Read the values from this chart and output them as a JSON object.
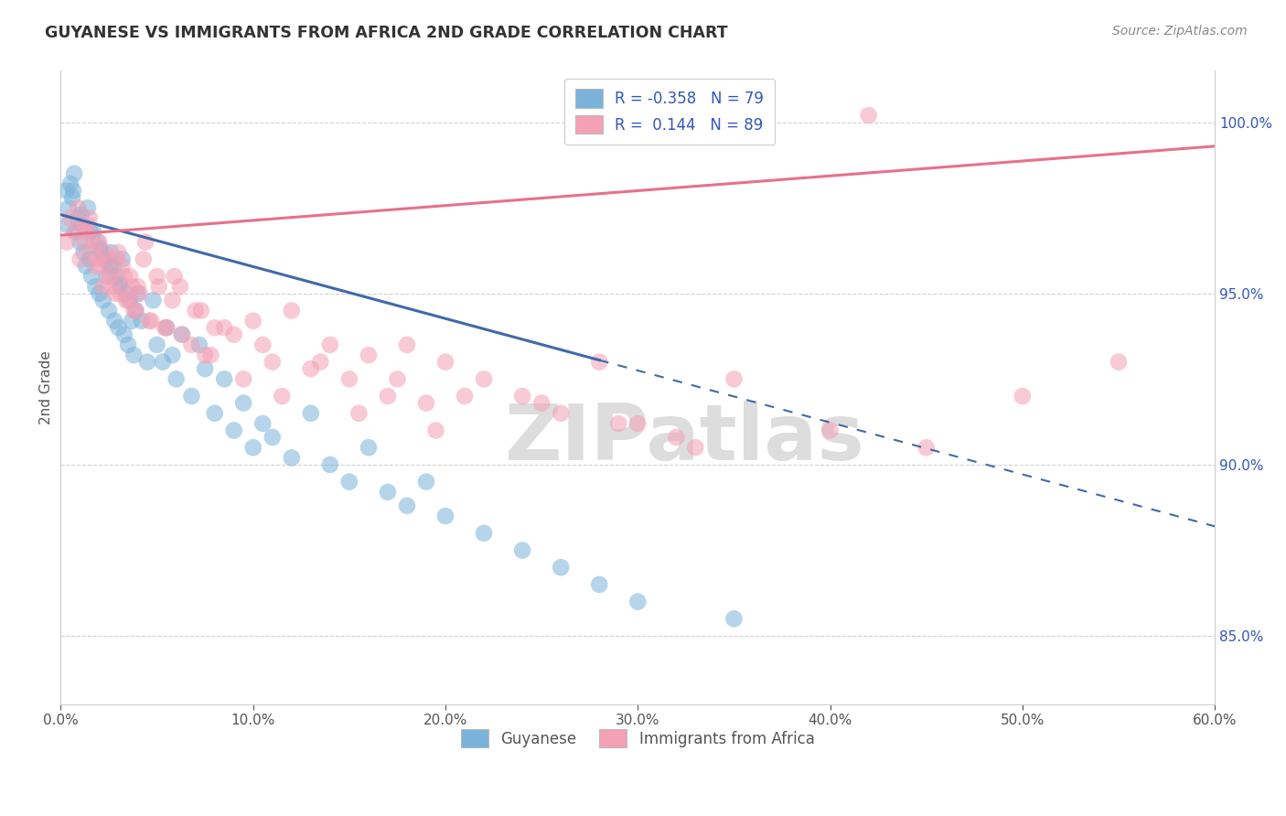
{
  "title": "GUYANESE VS IMMIGRANTS FROM AFRICA 2ND GRADE CORRELATION CHART",
  "source": "Source: ZipAtlas.com",
  "xlabel_blue": "Guyanese",
  "xlabel_pink": "Immigrants from Africa",
  "ylabel": "2nd Grade",
  "xlim": [
    0.0,
    60.0
  ],
  "ylim": [
    83.0,
    101.5
  ],
  "yticks": [
    85.0,
    90.0,
    95.0,
    100.0
  ],
  "xticks": [
    0.0,
    10.0,
    20.0,
    30.0,
    40.0,
    50.0,
    60.0
  ],
  "R_blue": -0.358,
  "N_blue": 79,
  "R_pink": 0.144,
  "N_pink": 89,
  "blue_color": "#7ab3d9",
  "pink_color": "#f4a0b5",
  "blue_line_color": "#4169aa",
  "pink_line_color": "#e8708a",
  "legend_text_color": "#3355bb",
  "background_color": "#ffffff",
  "blue_scatter_x": [
    0.3,
    0.4,
    0.5,
    0.6,
    0.7,
    0.8,
    0.9,
    1.0,
    1.1,
    1.2,
    1.3,
    1.4,
    1.5,
    1.6,
    1.7,
    1.8,
    1.9,
    2.0,
    2.1,
    2.2,
    2.3,
    2.4,
    2.5,
    2.6,
    2.7,
    2.8,
    2.9,
    3.0,
    3.1,
    3.2,
    3.3,
    3.4,
    3.5,
    3.6,
    3.7,
    3.8,
    3.9,
    4.0,
    4.2,
    4.5,
    4.8,
    5.0,
    5.3,
    5.5,
    5.8,
    6.0,
    6.3,
    6.8,
    7.2,
    7.5,
    8.0,
    8.5,
    9.0,
    9.5,
    10.0,
    10.5,
    11.0,
    12.0,
    13.0,
    14.0,
    15.0,
    16.0,
    17.0,
    18.0,
    19.0,
    20.0,
    22.0,
    24.0,
    26.0,
    28.0,
    30.0,
    35.0,
    0.35,
    0.65,
    1.05,
    1.55,
    2.05,
    2.55,
    3.05
  ],
  "blue_scatter_y": [
    98.0,
    97.5,
    98.2,
    97.8,
    98.5,
    96.8,
    97.2,
    96.5,
    97.0,
    96.2,
    95.8,
    97.5,
    96.0,
    95.5,
    96.8,
    95.2,
    96.5,
    95.0,
    96.2,
    94.8,
    96.0,
    95.5,
    94.5,
    96.2,
    95.8,
    94.2,
    95.5,
    94.0,
    95.2,
    96.0,
    93.8,
    95.0,
    93.5,
    94.8,
    94.2,
    93.2,
    94.5,
    95.0,
    94.2,
    93.0,
    94.8,
    93.5,
    93.0,
    94.0,
    93.2,
    92.5,
    93.8,
    92.0,
    93.5,
    92.8,
    91.5,
    92.5,
    91.0,
    91.8,
    90.5,
    91.2,
    90.8,
    90.2,
    91.5,
    90.0,
    89.5,
    90.5,
    89.2,
    88.8,
    89.5,
    88.5,
    88.0,
    87.5,
    87.0,
    86.5,
    86.0,
    85.5,
    97.0,
    98.0,
    97.3,
    96.8,
    96.3,
    95.8,
    95.3
  ],
  "pink_scatter_x": [
    0.3,
    0.5,
    0.7,
    0.9,
    1.0,
    1.2,
    1.4,
    1.6,
    1.8,
    2.0,
    2.2,
    2.4,
    2.6,
    2.8,
    3.0,
    3.2,
    3.4,
    3.6,
    3.8,
    4.0,
    4.3,
    4.6,
    5.0,
    5.4,
    5.8,
    6.2,
    6.8,
    7.3,
    7.8,
    8.5,
    9.0,
    10.0,
    11.0,
    12.0,
    13.0,
    14.0,
    15.0,
    16.0,
    17.0,
    18.0,
    19.0,
    20.0,
    22.0,
    24.0,
    26.0,
    28.0,
    30.0,
    32.0,
    35.0,
    40.0,
    45.0,
    50.0,
    55.0,
    1.1,
    1.3,
    1.5,
    1.7,
    1.9,
    2.1,
    2.3,
    2.5,
    2.7,
    2.9,
    3.1,
    3.3,
    3.5,
    3.7,
    3.9,
    4.1,
    4.4,
    4.7,
    5.1,
    5.5,
    5.9,
    6.3,
    7.0,
    7.5,
    8.0,
    9.5,
    10.5,
    11.5,
    13.5,
    15.5,
    17.5,
    19.5,
    21.0,
    25.0,
    29.0,
    33.0,
    42.0
  ],
  "pink_scatter_y": [
    96.5,
    97.2,
    96.8,
    97.5,
    96.0,
    96.5,
    97.0,
    96.2,
    95.8,
    96.5,
    95.2,
    96.0,
    95.5,
    95.0,
    96.2,
    95.8,
    94.8,
    95.5,
    94.5,
    95.2,
    96.0,
    94.2,
    95.5,
    94.0,
    94.8,
    95.2,
    93.5,
    94.5,
    93.2,
    94.0,
    93.8,
    94.2,
    93.0,
    94.5,
    92.8,
    93.5,
    92.5,
    93.2,
    92.0,
    93.5,
    91.8,
    93.0,
    92.5,
    92.0,
    91.5,
    93.0,
    91.2,
    90.8,
    92.5,
    91.0,
    90.5,
    92.0,
    93.0,
    97.0,
    96.8,
    97.2,
    96.5,
    96.0,
    95.8,
    96.2,
    95.5,
    95.2,
    96.0,
    95.0,
    95.5,
    94.8,
    95.2,
    94.5,
    95.0,
    96.5,
    94.2,
    95.2,
    94.0,
    95.5,
    93.8,
    94.5,
    93.2,
    94.0,
    92.5,
    93.5,
    92.0,
    93.0,
    91.5,
    92.5,
    91.0,
    92.0,
    91.8,
    91.2,
    90.5,
    100.2
  ],
  "blue_line_x0": 0.0,
  "blue_line_y0": 97.3,
  "blue_line_x1": 60.0,
  "blue_line_y1": 88.2,
  "blue_solid_end": 28.0,
  "pink_line_x0": 0.0,
  "pink_line_y0": 96.7,
  "pink_line_x1": 60.0,
  "pink_line_y1": 99.3
}
